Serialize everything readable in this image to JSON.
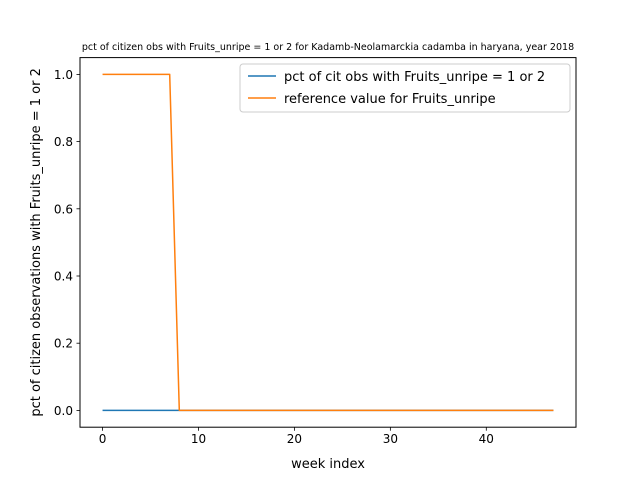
{
  "chart_data": {
    "type": "line",
    "title": "pct of citizen obs with Fruits_unripe = 1 or 2 for Kadamb-Neolamarckia cadamba in haryana, year 2018",
    "xlabel": "week index",
    "ylabel": "pct of citizen observations with Fruits_unripe = 1 or 2",
    "xlim": [
      -2.35,
      49.35
    ],
    "ylim": [
      -0.05,
      1.05
    ],
    "xticks": [
      0,
      10,
      20,
      30,
      40
    ],
    "yticks": [
      0.0,
      0.2,
      0.4,
      0.6,
      0.8,
      1.0
    ],
    "xtick_labels": [
      "0",
      "10",
      "20",
      "30",
      "40"
    ],
    "ytick_labels": [
      "0.0",
      "0.2",
      "0.4",
      "0.6",
      "0.8",
      "1.0"
    ],
    "grid": false,
    "legend_position": "upper right",
    "series": [
      {
        "name": "pct of cit obs with Fruits_unripe = 1 or 2",
        "color": "#1f77b4",
        "x": [
          0,
          47
        ],
        "y": [
          0,
          0
        ]
      },
      {
        "name": "reference value for Fruits_unripe",
        "color": "#ff7f0e",
        "x": [
          0,
          7,
          8,
          47
        ],
        "y": [
          1,
          1,
          0,
          0
        ]
      }
    ]
  }
}
